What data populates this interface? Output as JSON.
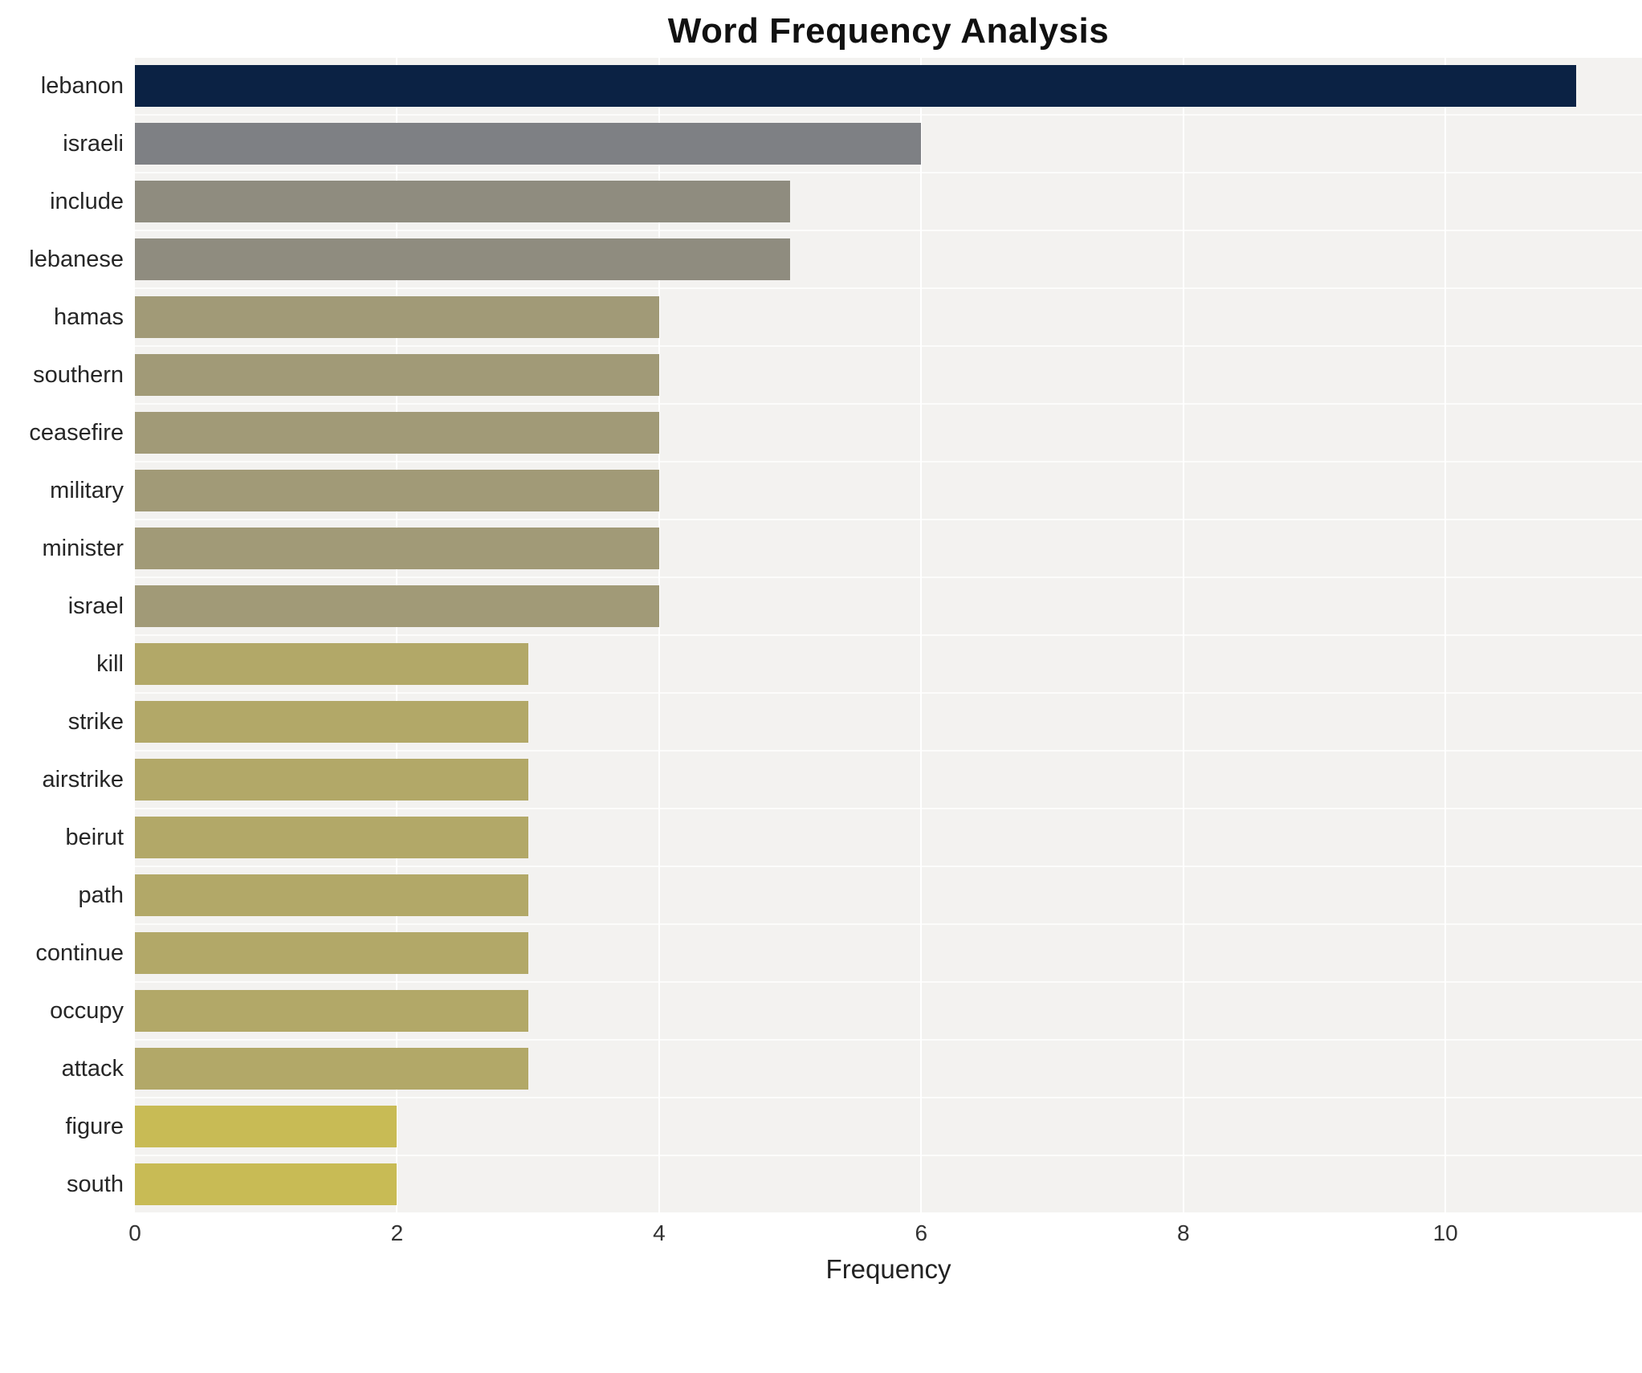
{
  "chart_data": {
    "type": "bar",
    "orientation": "horizontal",
    "title": "Word Frequency Analysis",
    "xlabel": "Frequency",
    "ylabel": "",
    "categories": [
      "lebanon",
      "israeli",
      "include",
      "lebanese",
      "hamas",
      "southern",
      "ceasefire",
      "military",
      "minister",
      "israel",
      "kill",
      "strike",
      "airstrike",
      "beirut",
      "path",
      "continue",
      "occupy",
      "attack",
      "figure",
      "south"
    ],
    "values": [
      11,
      6,
      5,
      5,
      4,
      4,
      4,
      4,
      4,
      4,
      3,
      3,
      3,
      3,
      3,
      3,
      3,
      3,
      2,
      2
    ],
    "bar_colors": [
      "#0b2244",
      "#7e8084",
      "#8f8c7f",
      "#8f8c7f",
      "#a19a77",
      "#a19a77",
      "#a19a77",
      "#a19a77",
      "#a19a77",
      "#a19a77",
      "#b2a868",
      "#b2a868",
      "#b2a868",
      "#b2a868",
      "#b2a868",
      "#b2a868",
      "#b2a868",
      "#b2a868",
      "#c8bb55",
      "#c8bb55"
    ],
    "xlim": [
      0,
      11.5
    ],
    "xticks": [
      0,
      2,
      4,
      6,
      8,
      10
    ],
    "grid": true,
    "legend": "none",
    "plot_background": "#f3f2f0",
    "figure_background": "#ffffff"
  }
}
